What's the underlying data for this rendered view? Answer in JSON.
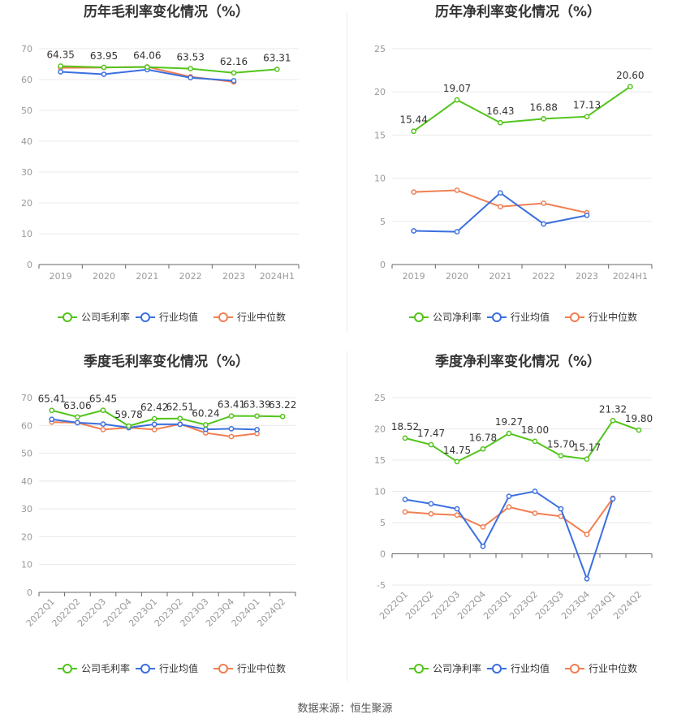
{
  "footer": {
    "source": "数据来源：恒生聚源"
  },
  "colors": {
    "company": "#52c41a",
    "avg": "#3b6fe0",
    "median": "#f07f52",
    "grid": "#e8e8e8",
    "axis": "#666666"
  },
  "chart_data": [
    {
      "type": "line",
      "title": "历年毛利率变化情况（%）",
      "categories": [
        "2019",
        "2020",
        "2021",
        "2022",
        "2023",
        "2024H1"
      ],
      "ylim": [
        0,
        70
      ],
      "yticks": [
        0,
        10,
        20,
        30,
        40,
        50,
        60,
        70
      ],
      "series": [
        {
          "name": "公司毛利率",
          "values": [
            64.35,
            63.95,
            64.06,
            63.53,
            62.16,
            63.31
          ],
          "labels": [
            "64.35",
            "63.95",
            "64.06",
            "63.53",
            "62.16",
            "63.31"
          ]
        },
        {
          "name": "行业均值",
          "values": [
            62.5,
            61.7,
            63.2,
            60.6,
            59.6,
            null
          ]
        },
        {
          "name": "行业中位数",
          "values": [
            63.8,
            63.9,
            64.1,
            60.9,
            59.2,
            null
          ]
        }
      ],
      "legend": [
        "公司毛利率",
        "行业均值",
        "行业中位数"
      ]
    },
    {
      "type": "line",
      "title": "历年净利率变化情况（%）",
      "categories": [
        "2019",
        "2020",
        "2021",
        "2022",
        "2023",
        "2024H1"
      ],
      "ylim": [
        0,
        25
      ],
      "yticks": [
        0,
        5,
        10,
        15,
        20,
        25
      ],
      "series": [
        {
          "name": "公司净利率",
          "values": [
            15.44,
            19.07,
            16.43,
            16.88,
            17.13,
            20.6
          ],
          "labels": [
            "15.44",
            "19.07",
            "16.43",
            "16.88",
            "17.13",
            "20.60"
          ]
        },
        {
          "name": "行业均值",
          "values": [
            3.9,
            3.8,
            8.3,
            4.7,
            5.7,
            null
          ]
        },
        {
          "name": "行业中位数",
          "values": [
            8.4,
            8.6,
            6.7,
            7.1,
            6.0,
            null
          ]
        }
      ],
      "legend": [
        "公司净利率",
        "行业均值",
        "行业中位数"
      ]
    },
    {
      "type": "line",
      "title": "季度毛利率变化情况（%）",
      "categories": [
        "2022Q1",
        "2022Q2",
        "2022Q3",
        "2022Q4",
        "2023Q1",
        "2023Q2",
        "2023Q3",
        "2023Q4",
        "2024Q1",
        "2024Q2"
      ],
      "ylim": [
        0,
        70
      ],
      "yticks": [
        0,
        10,
        20,
        30,
        40,
        50,
        60,
        70
      ],
      "series": [
        {
          "name": "公司毛利率",
          "values": [
            65.41,
            63.06,
            65.45,
            59.78,
            62.42,
            62.51,
            60.24,
            63.41,
            63.39,
            63.22
          ],
          "labels": [
            "65.41",
            "63.06",
            "65.45",
            "59.78",
            "62.42",
            "62.51",
            "60.24",
            "63.41",
            "63.39",
            "63.22"
          ]
        },
        {
          "name": "行业均值",
          "values": [
            62.2,
            61.0,
            60.5,
            59.2,
            60.4,
            60.4,
            58.6,
            58.8,
            58.5,
            null
          ]
        },
        {
          "name": "行业中位数",
          "values": [
            61.2,
            61.0,
            58.5,
            59.2,
            58.5,
            60.5,
            57.3,
            56.0,
            57.1,
            null
          ]
        }
      ],
      "legend": [
        "公司毛利率",
        "行业均值",
        "行业中位数"
      ]
    },
    {
      "type": "line",
      "title": "季度净利率变化情况（%）",
      "categories": [
        "2022Q1",
        "2022Q2",
        "2022Q3",
        "2022Q4",
        "2023Q1",
        "2023Q2",
        "2023Q3",
        "2023Q4",
        "2024Q1",
        "2024Q2"
      ],
      "ylim": [
        -5,
        25
      ],
      "yticks": [
        -5,
        0,
        5,
        10,
        15,
        20,
        25
      ],
      "series": [
        {
          "name": "公司净利率",
          "values": [
            18.52,
            17.47,
            14.75,
            16.78,
            19.27,
            18.0,
            15.7,
            15.17,
            21.32,
            19.8
          ],
          "labels": [
            "18.52",
            "17.47",
            "14.75",
            "16.78",
            "19.27",
            "18.00",
            "15.70",
            "15.17",
            "21.32",
            "19.80"
          ]
        },
        {
          "name": "行业均值",
          "values": [
            8.7,
            8.0,
            7.2,
            1.2,
            9.2,
            10.0,
            7.2,
            -4.0,
            8.8,
            null
          ]
        },
        {
          "name": "行业中位数",
          "values": [
            6.7,
            6.4,
            6.2,
            4.3,
            7.5,
            6.5,
            6.0,
            3.1,
            8.9,
            null
          ]
        }
      ],
      "legend": [
        "公司净利率",
        "行业均值",
        "行业中位数"
      ]
    }
  ]
}
